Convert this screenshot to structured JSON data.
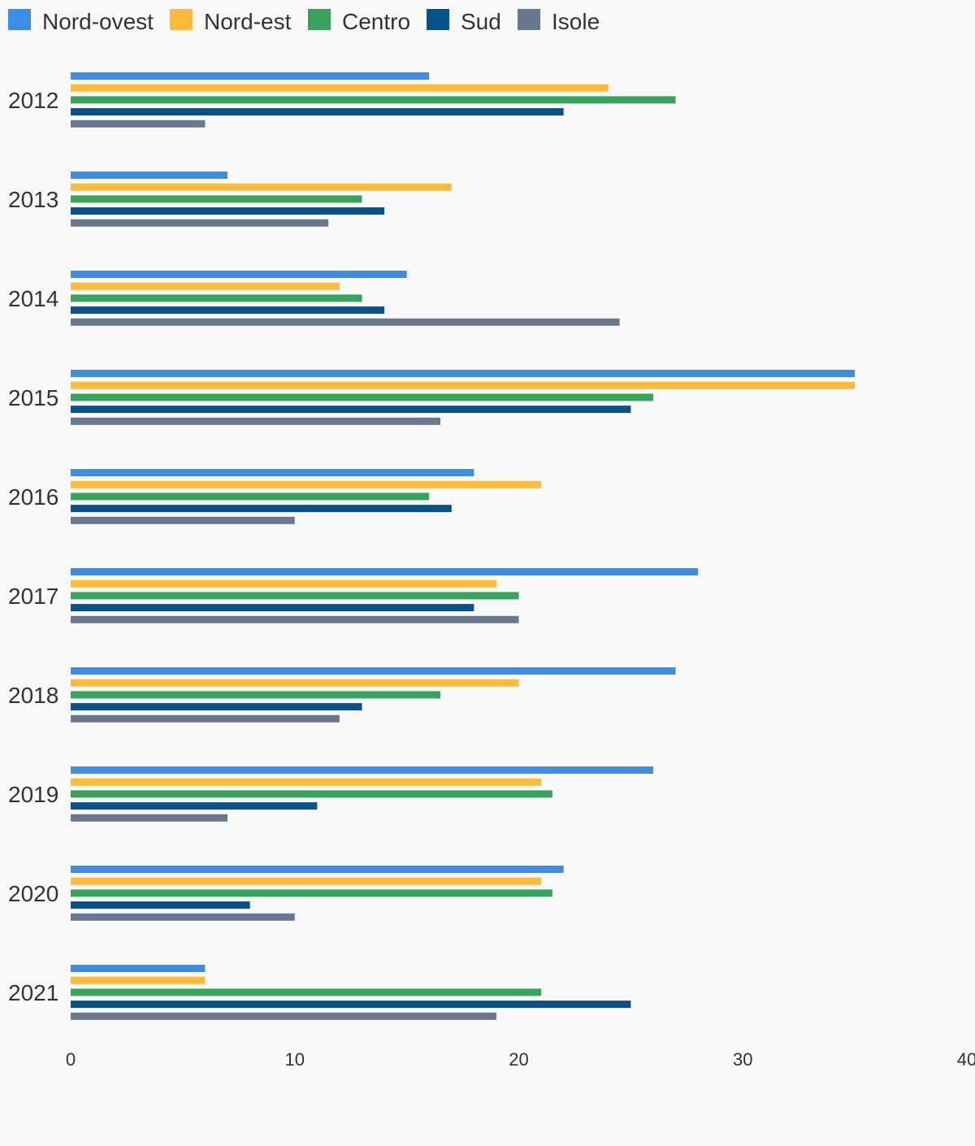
{
  "chart_data": {
    "type": "bar",
    "orientation": "horizontal",
    "categories": [
      "2012",
      "2013",
      "2014",
      "2015",
      "2016",
      "2017",
      "2018",
      "2019",
      "2020",
      "2021"
    ],
    "series": [
      {
        "name": "Nord-ovest",
        "color": "#3a8ee6",
        "values": [
          16,
          7,
          15,
          35,
          18,
          28,
          27,
          26,
          22,
          6
        ]
      },
      {
        "name": "Nord-est",
        "color": "#ffb93b",
        "values": [
          24,
          17,
          12,
          35,
          21,
          19,
          20,
          21,
          21,
          6
        ]
      },
      {
        "name": "Centro",
        "color": "#38a35f",
        "values": [
          27,
          13,
          13,
          26,
          16,
          20,
          16.5,
          21.5,
          21.5,
          21
        ]
      },
      {
        "name": "Sud",
        "color": "#05528c",
        "values": [
          22,
          14,
          14,
          25,
          17,
          18,
          13,
          11,
          8,
          25
        ]
      },
      {
        "name": "Isole",
        "color": "#69788f",
        "values": [
          6,
          11.5,
          24.5,
          16.5,
          10,
          20,
          12,
          7,
          10,
          19
        ]
      }
    ],
    "xlim": [
      0,
      40
    ],
    "xticks": [
      "0",
      "10",
      "20",
      "30",
      "40"
    ],
    "grid": false,
    "legend_position": "top-left"
  }
}
